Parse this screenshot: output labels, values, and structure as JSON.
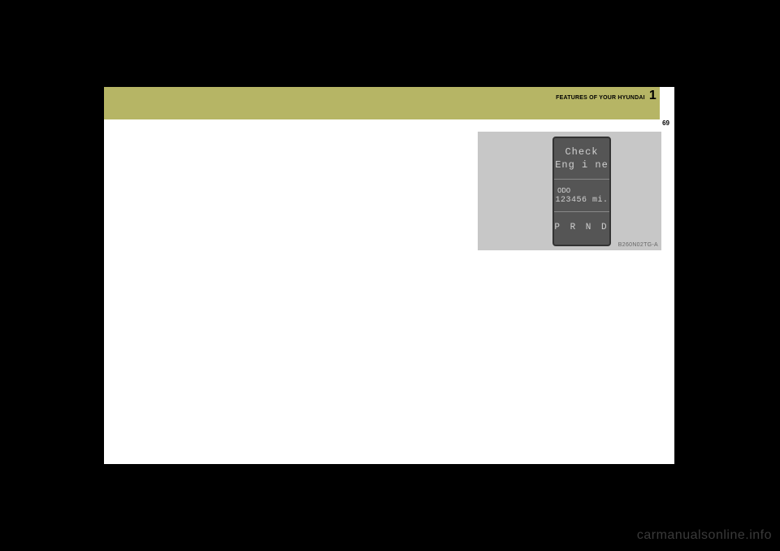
{
  "header": {
    "section_title": "FEATURES OF YOUR HYUNDAI",
    "chapter": "1",
    "page_number": "69"
  },
  "dashboard": {
    "check_line1": "Check",
    "check_line2": "Eng i ne",
    "odo_label": "ODO",
    "odo_value": "123456 mi.",
    "gear_row": "P R N D",
    "figure_code": "B260N02TG-A",
    "panel_bg": "#c7c7c7",
    "lcd_bg": "#555555",
    "lcd_text_color": "#d0d0d0"
  },
  "watermark": "carmanualsonline.info"
}
